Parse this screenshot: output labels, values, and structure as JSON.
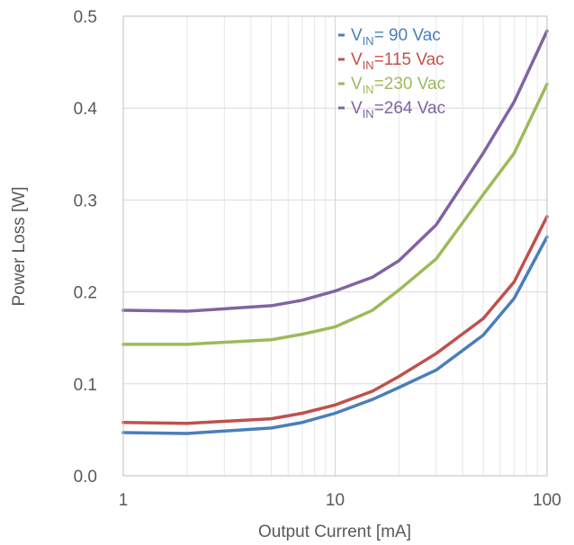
{
  "chart_data": {
    "type": "line",
    "title": "",
    "xlabel": "Output Current [mA]",
    "ylabel": "Power Loss [W]",
    "x_scale": "log",
    "xlim": [
      1,
      100
    ],
    "ylim": [
      0,
      0.5
    ],
    "x_ticks": [
      1,
      10,
      100
    ],
    "x_tick_labels": [
      "1",
      "10",
      "100"
    ],
    "y_ticks": [
      0,
      0.1,
      0.2,
      0.3,
      0.4,
      0.5
    ],
    "y_tick_labels": [
      "0.0",
      "0.1",
      "0.2",
      "0.3",
      "0.4",
      "0.5"
    ],
    "grid": true,
    "legend_position": "top-right",
    "x": [
      1,
      2,
      5,
      7,
      10,
      15,
      20,
      30,
      50,
      70,
      100
    ],
    "series": [
      {
        "name_prefix": "V",
        "name_sub": "IN",
        "name_suffix": "= 90 Vac",
        "color": "#4a7ebb",
        "values": [
          0.047,
          0.046,
          0.052,
          0.058,
          0.068,
          0.083,
          0.096,
          0.115,
          0.153,
          0.193,
          0.26
        ]
      },
      {
        "name_prefix": "V",
        "name_sub": "IN",
        "name_suffix": "=115 Vac",
        "color": "#c0504d",
        "values": [
          0.058,
          0.057,
          0.062,
          0.068,
          0.077,
          0.092,
          0.108,
          0.133,
          0.171,
          0.211,
          0.282
        ]
      },
      {
        "name_prefix": "V",
        "name_sub": "IN",
        "name_suffix": "=230 Vac",
        "color": "#9bbb59",
        "values": [
          0.143,
          0.143,
          0.148,
          0.154,
          0.162,
          0.18,
          0.202,
          0.236,
          0.306,
          0.351,
          0.426
        ]
      },
      {
        "name_prefix": "V",
        "name_sub": "IN",
        "name_suffix": "=264 Vac",
        "color": "#8064a2",
        "values": [
          0.18,
          0.179,
          0.185,
          0.191,
          0.201,
          0.216,
          0.234,
          0.273,
          0.351,
          0.407,
          0.484
        ]
      }
    ]
  }
}
